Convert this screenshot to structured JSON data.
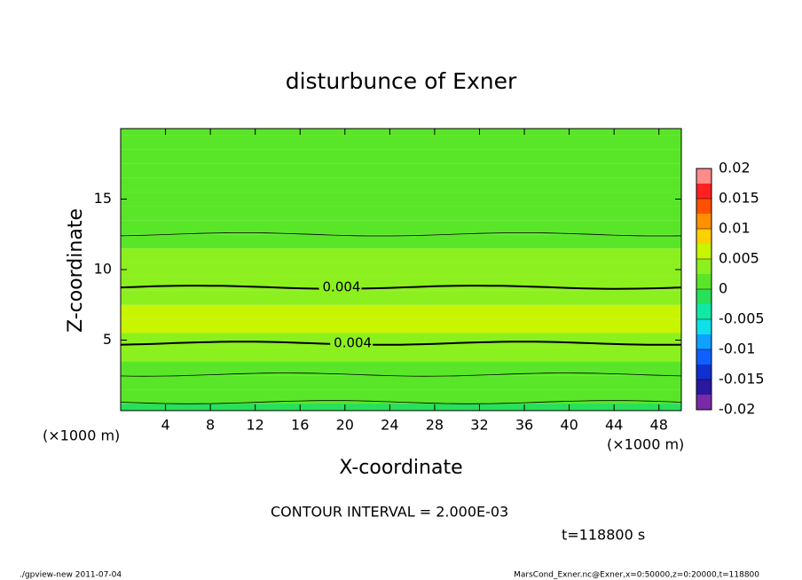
{
  "chart_data": {
    "type": "contour",
    "title": "disturbunce of Exner",
    "x_label": "X-coordinate",
    "y_label": "Z-coordinate",
    "x_unit": "(×1000 m)",
    "xlim": [
      0,
      50
    ],
    "xticks": [
      4,
      8,
      12,
      16,
      20,
      24,
      28,
      32,
      36,
      40,
      44,
      48
    ],
    "ylim": [
      0,
      20
    ],
    "yticks": [
      5,
      10,
      15
    ],
    "z": [
      0,
      1,
      2,
      3,
      4,
      5,
      6,
      7,
      8,
      9,
      10,
      11,
      12,
      13,
      14,
      15,
      16,
      17,
      18,
      19,
      20
    ],
    "values": [
      -0.0006,
      0.0004,
      0.0015,
      0.0024,
      0.0033,
      0.0042,
      0.005,
      0.0054,
      0.0046,
      0.0038,
      0.003,
      0.0025,
      0.0022,
      0.0018,
      0.0016,
      0.0014,
      0.0012,
      0.0011,
      0.001,
      0.001,
      0.0011
    ],
    "contour_levels": [
      0,
      0.002,
      0.004
    ],
    "contour_labels": [
      false,
      false,
      true
    ],
    "colorbar": {
      "levels": [
        -0.02,
        -0.0175,
        -0.015,
        -0.0125,
        -0.01,
        -0.0075,
        -0.005,
        -0.0025,
        0,
        0.0025,
        0.005,
        0.0075,
        0.01,
        0.0125,
        0.015,
        0.0175,
        0.02
      ],
      "colors": [
        "#7a2aa8",
        "#2a18a0",
        "#1030d0",
        "#1060ff",
        "#10a0ff",
        "#10e0e8",
        "#10e8a8",
        "#28e05a",
        "#5ae628",
        "#8cf01e",
        "#c8f500",
        "#ffd000",
        "#ff9000",
        "#ff5000",
        "#ff2020",
        "#ff8a8a"
      ],
      "ticks": [
        0.02,
        0.015,
        0.01,
        0.005,
        0,
        -0.005,
        -0.01,
        -0.015,
        -0.02
      ]
    },
    "annotations": [
      "CONTOUR INTERVAL = 2.000E-03",
      "t=118800 s"
    ],
    "footer_left": "./gpview-new  2011-07-04",
    "footer_right": "MarsCond_Exner.nc@Exner,x=0:50000,z=0:20000,t=118800"
  }
}
